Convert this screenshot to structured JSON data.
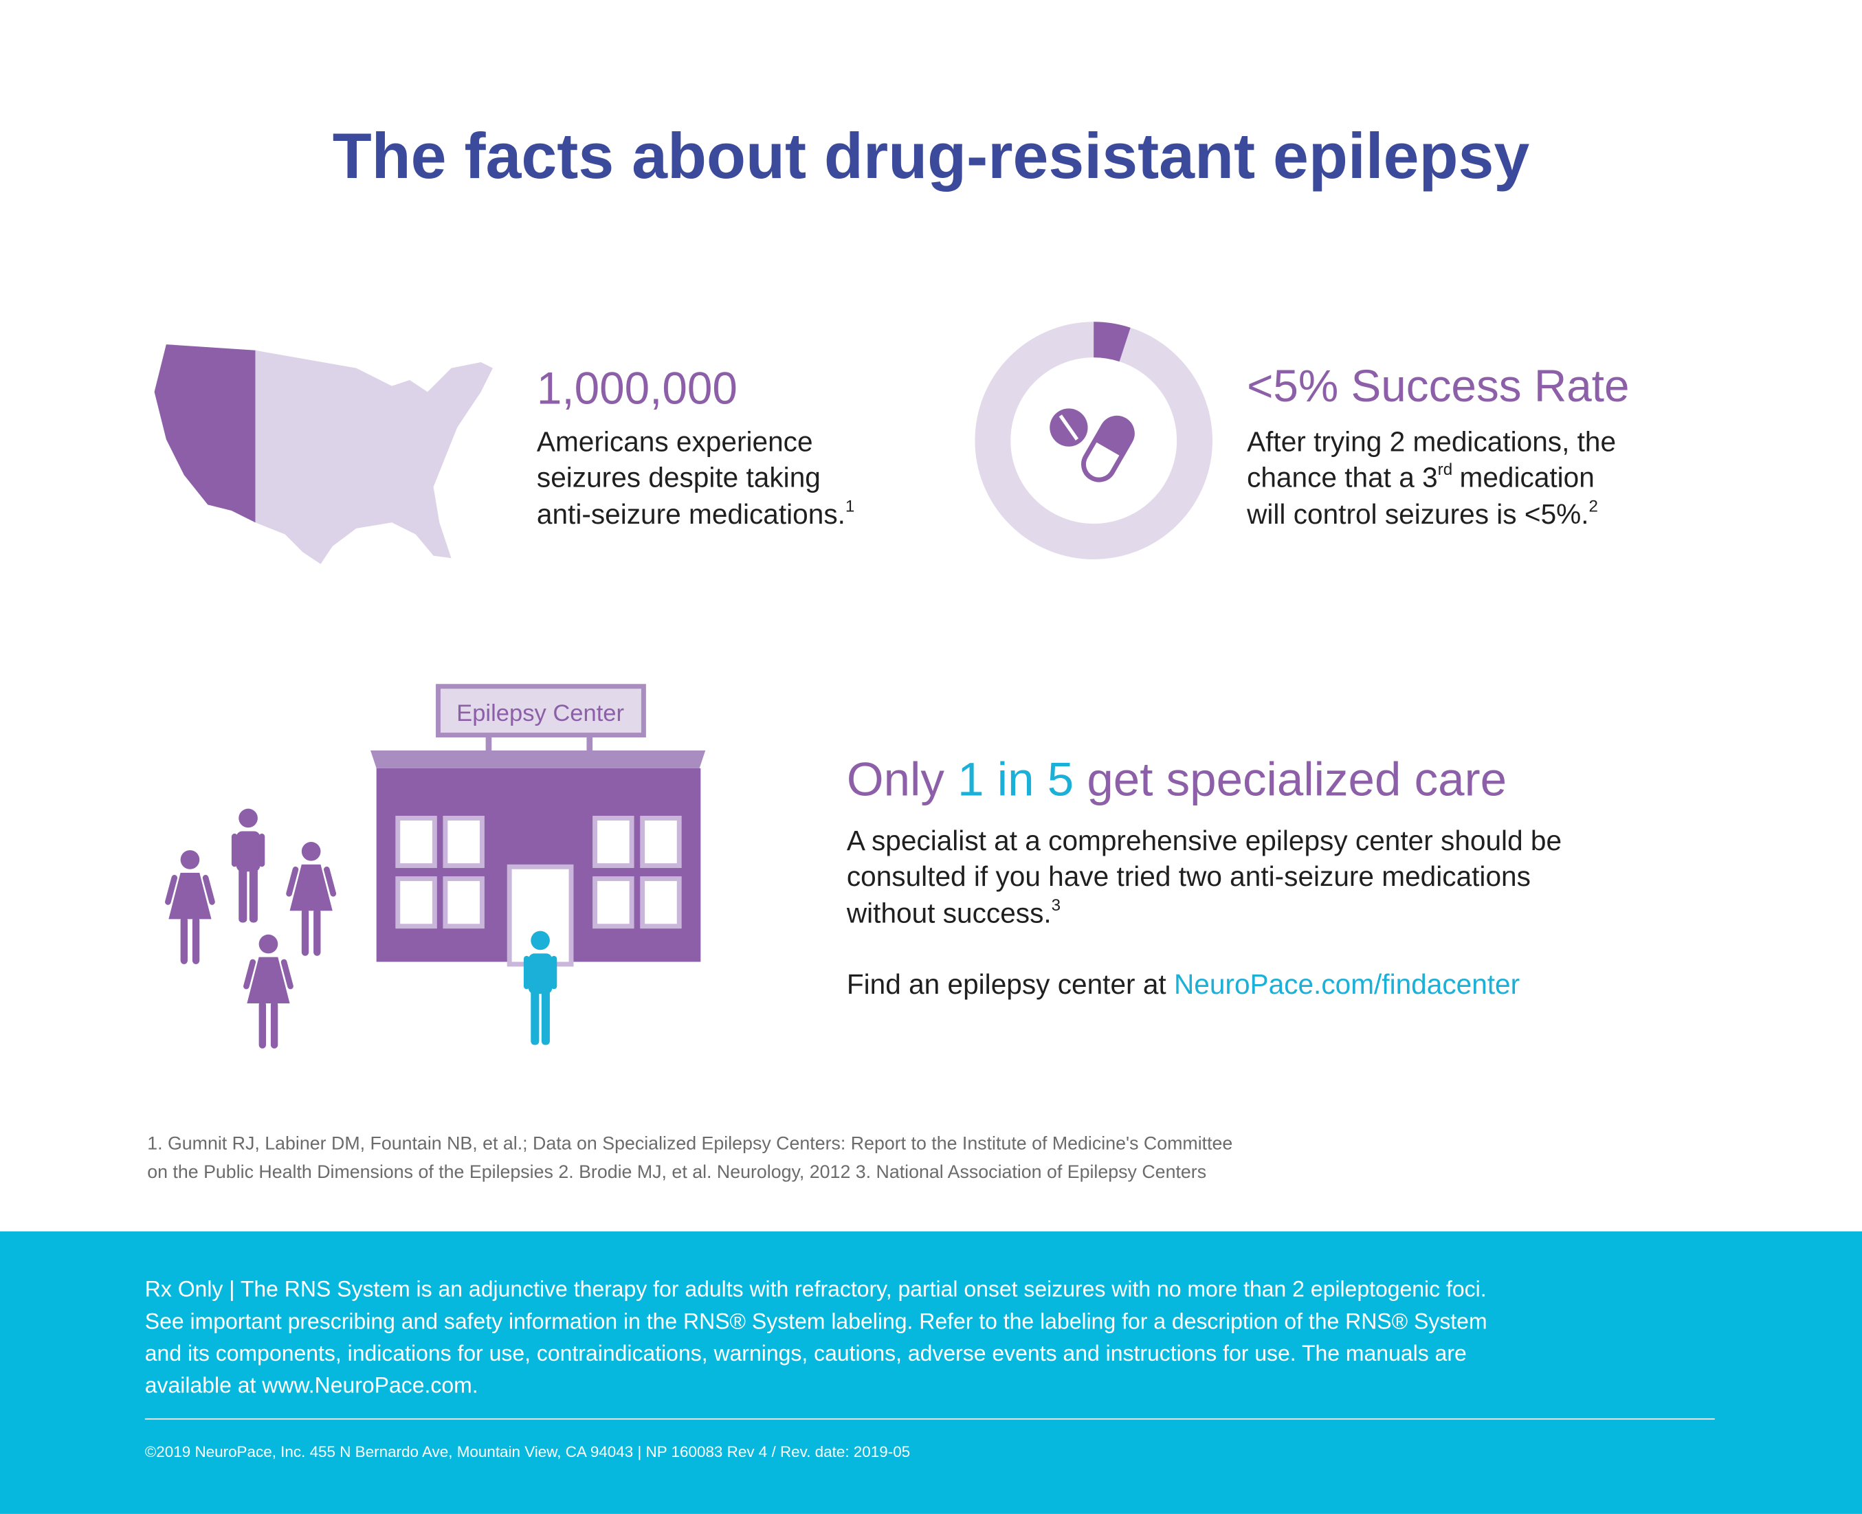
{
  "title": "The facts about drug-resistant epilepsy",
  "facts": [
    {
      "heading": "1,000,000",
      "lines": [
        "Americans experience",
        "seizures despite taking",
        "anti-seizure medications."
      ],
      "ref": "1"
    },
    {
      "heading": "<5% Success Rate",
      "line1": "After trying 2 medications, the",
      "line2_start": "chance that a 3",
      "line2_sup": "rd",
      "line2_end": "medication",
      "line3": "will control seizures is <5%.",
      "ref": "2"
    },
    {
      "heading_start": "Only",
      "heading_highlight": "1 in 5",
      "heading_end": "get specialized care",
      "lines": [
        "A specialist at a comprehensive epilepsy center should be",
        "consulted if you have tried two anti-seizure medications",
        "without success."
      ],
      "ref": "3",
      "find_text": "Find an epilepsy center at",
      "link": "NeuroPace.com/findacenter"
    }
  ],
  "sign": "Epilepsy Center",
  "references": [
    "1. Gumnit RJ, Labiner DM, Fountain NB, et al.; Data on Specialized  Epilepsy Centers: Report to the Institute of Medicine's Committee",
    "on the Public Health Dimensions of the Epilepsies 2. Brodie MJ, et al. Neurology, 2012 3. National Association of Epilepsy Centers"
  ],
  "footer": {
    "lines": [
      "Rx Only | The RNS System is an adjunctive therapy for adults with refractory, partial onset seizures with no more than 2 epileptogenic foci.",
      "See important prescribing and safety information in the RNS® System labeling. Refer to the labeling for a description of the RNS® System",
      "and its components, indications for use, contraindications, warnings, cautions, adverse events and instructions for use. The manuals are",
      "available at www.NeuroPace.com."
    ],
    "copyright": "©2019 NeuroPace, Inc. 455 N Bernardo Ave, Mountain View, CA 94043 | NP 160083 Rev 4 / Rev. date: 2019-05"
  }
}
